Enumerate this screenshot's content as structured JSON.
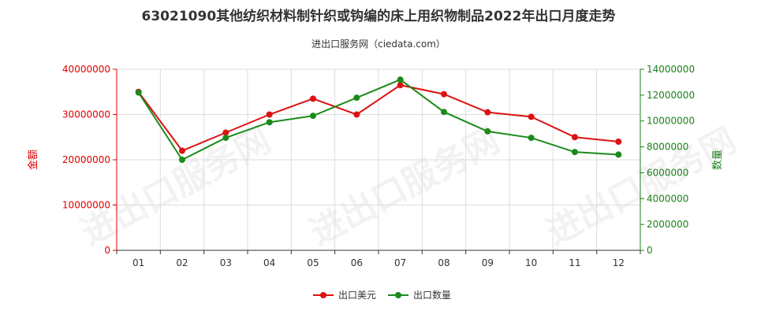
{
  "chart_data": {
    "type": "line",
    "title": "63021090其他纺织材料制针织或钩编的床上用织物制品2022年出口月度走势",
    "subtitle": "进出口服务网（ciedata.com）",
    "watermark": "进出口服务网",
    "categories": [
      "01",
      "02",
      "03",
      "04",
      "05",
      "06",
      "07",
      "08",
      "09",
      "10",
      "11",
      "12"
    ],
    "y_left": {
      "label": "金额",
      "min": 0,
      "max": 40000000,
      "ticks": [
        "0",
        "10000000",
        "20000000",
        "30000000",
        "40000000"
      ],
      "color": "#dd0000"
    },
    "y_right": {
      "label": "数量",
      "min": 0,
      "max": 14000000,
      "ticks": [
        "0",
        "2000000",
        "4000000",
        "6000000",
        "8000000",
        "10000000",
        "12000000",
        "14000000"
      ],
      "color": "#1a7f1a"
    },
    "series": [
      {
        "name": "出口美元",
        "axis": "left",
        "color": "#dd1111",
        "values": [
          35000000,
          22000000,
          26000000,
          30000000,
          33500000,
          30000000,
          36500000,
          34500000,
          30500000,
          29500000,
          25000000,
          24000000
        ]
      },
      {
        "name": "出口数量",
        "axis": "right",
        "color": "#1a8a1a",
        "values": [
          12200000,
          7000000,
          8700000,
          9900000,
          10400000,
          11800000,
          13200000,
          10700000,
          9200000,
          8700000,
          7600000,
          7400000
        ]
      }
    ],
    "grid": true,
    "legend_position": "bottom"
  }
}
